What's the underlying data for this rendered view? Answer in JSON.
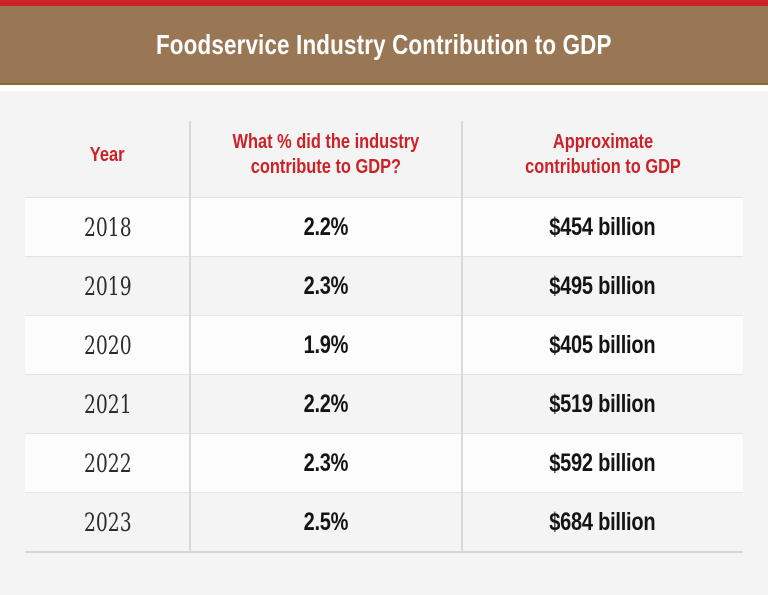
{
  "colors": {
    "accent_red": "#cb2127",
    "banner_tan": "#9a7754",
    "banner_border": "#8a6a35",
    "page_bg": "#f4f4f4",
    "row_white": "#fcfcfc",
    "divider_gray": "#d9d9d9",
    "header_text_red": "#cc2127",
    "body_text": "#141414"
  },
  "header": {
    "title": "Foodservice Industry Contribution to GDP"
  },
  "chart_data": {
    "type": "table",
    "title": "Foodservice Industry Contribution to GDP",
    "columns": [
      "Year",
      "What % did the industry contribute to GDP?",
      "Approximate contribution to GDP"
    ],
    "column_header_lines": [
      {
        "line1": "Year",
        "line2": ""
      },
      {
        "line1": "What % did the industry",
        "line2": "contribute to GDP?"
      },
      {
        "line1": "Approximate",
        "line2": "contribution to GDP"
      }
    ],
    "rows": [
      [
        "2018",
        "2.2%",
        "$454 billion"
      ],
      [
        "2019",
        "2.3%",
        "$495 billion"
      ],
      [
        "2020",
        "1.9%",
        "$405 billion"
      ],
      [
        "2021",
        "2.2%",
        "$519 billion"
      ],
      [
        "2022",
        "2.3%",
        "$592 billion"
      ],
      [
        "2023",
        "2.5%",
        "$684 billion"
      ]
    ]
  }
}
